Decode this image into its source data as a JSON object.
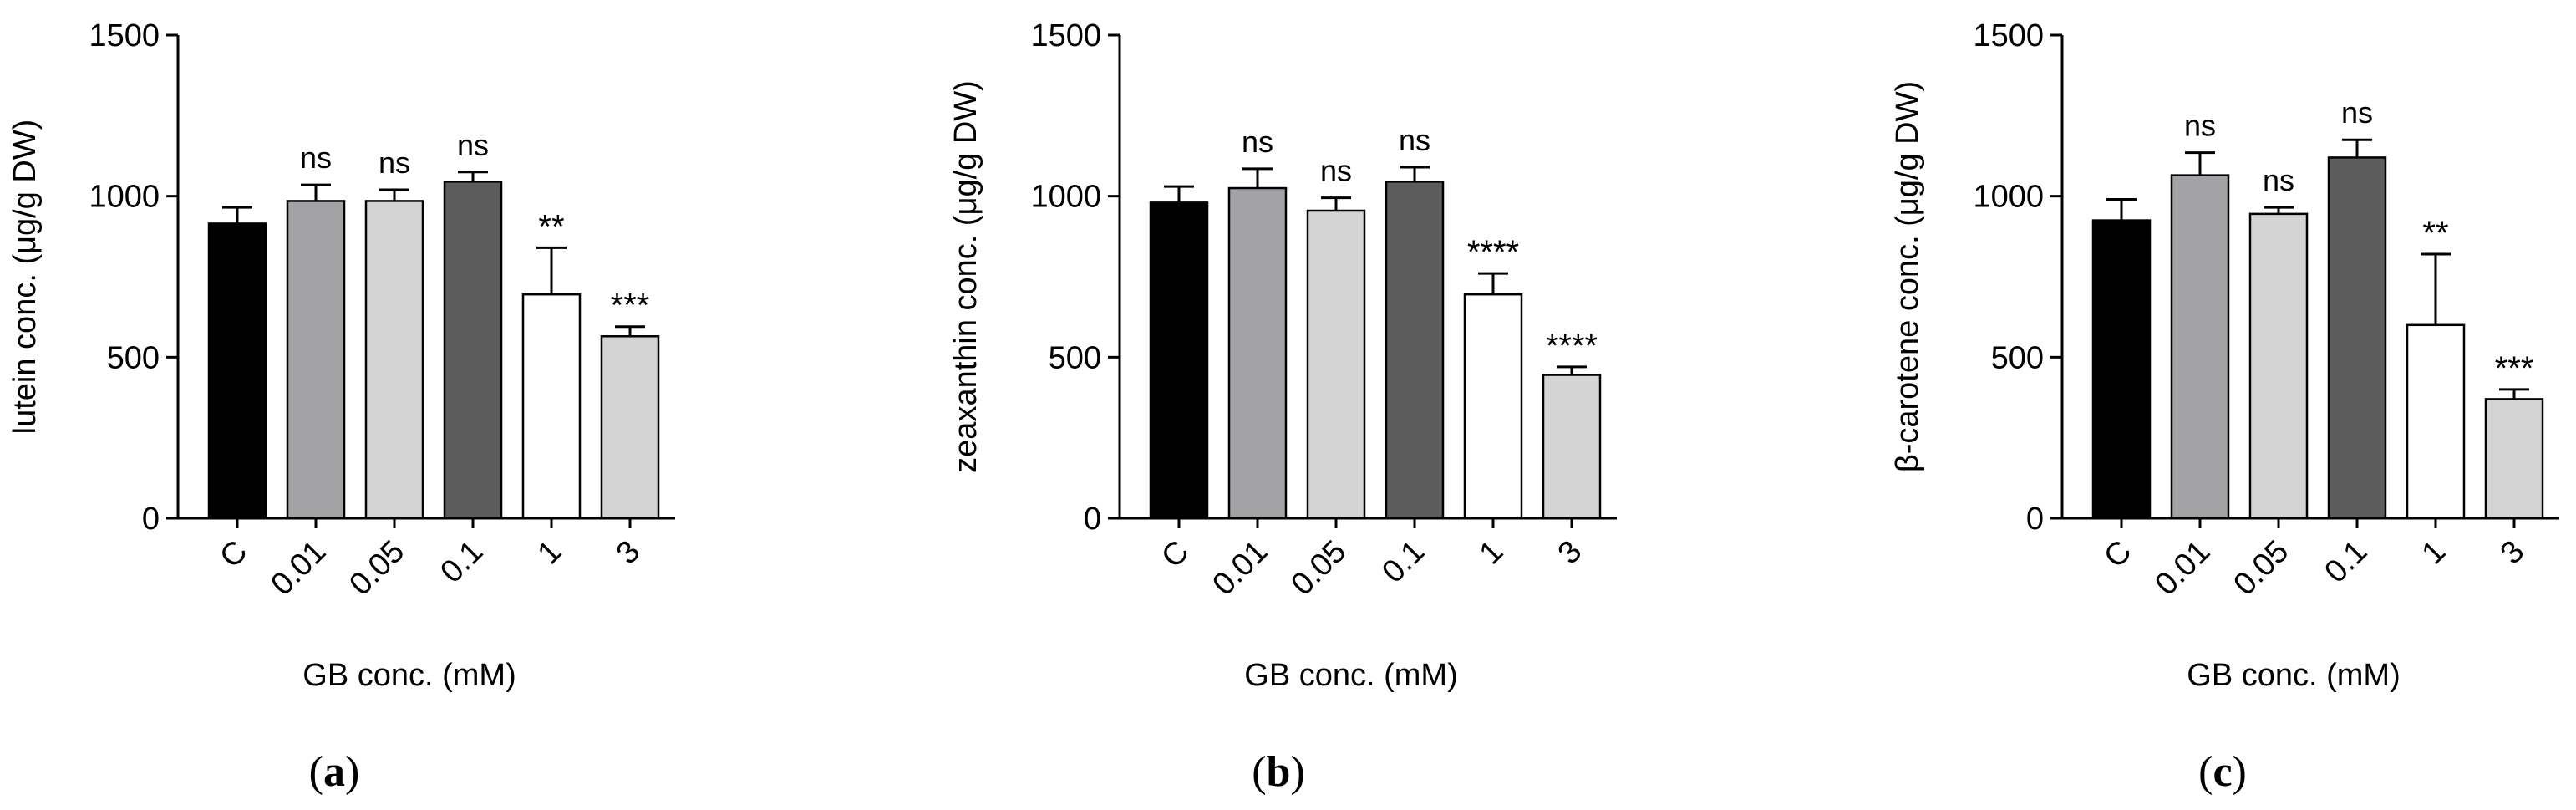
{
  "chart_data": [
    {
      "panel_label": "a",
      "type": "bar",
      "categories": [
        "C",
        "0.01",
        "0.05",
        "0.1",
        "1",
        "3"
      ],
      "values": [
        915,
        985,
        985,
        1045,
        695,
        565
      ],
      "errors": [
        50,
        50,
        35,
        30,
        145,
        30
      ],
      "significance": [
        "",
        "ns",
        "ns",
        "ns",
        "**",
        "***"
      ],
      "bar_colors": [
        "#000000",
        "#a3a3a6",
        "#d4d4d4",
        "#5c5c5c",
        "#ffffff",
        "#d4d4d4"
      ],
      "xlabel": "GB conc. (mM)",
      "ylabel": "lutein conc. (μg/g DW)",
      "yticks": [
        "0",
        "500",
        "1000",
        "1500"
      ],
      "ylim": [
        0,
        1500
      ]
    },
    {
      "panel_label": "b",
      "type": "bar",
      "categories": [
        "C",
        "0.01",
        "0.05",
        "0.1",
        "1",
        "3"
      ],
      "values": [
        980,
        1025,
        955,
        1045,
        695,
        445
      ],
      "errors": [
        50,
        60,
        40,
        45,
        65,
        25
      ],
      "significance": [
        "",
        "ns",
        "ns",
        "ns",
        "****",
        "****"
      ],
      "bar_colors": [
        "#000000",
        "#a3a3a6",
        "#d4d4d4",
        "#5c5c5c",
        "#ffffff",
        "#d4d4d4"
      ],
      "xlabel": "GB conc. (mM)",
      "ylabel": "zeaxanthin conc. (μg/g DW)",
      "yticks": [
        "0",
        "500",
        "1000",
        "1500"
      ],
      "ylim": [
        0,
        1500
      ]
    },
    {
      "panel_label": "c",
      "type": "bar",
      "categories": [
        "C",
        "0.01",
        "0.05",
        "0.1",
        "1",
        "3"
      ],
      "values": [
        925,
        1065,
        945,
        1120,
        600,
        370
      ],
      "errors": [
        65,
        70,
        20,
        55,
        220,
        30
      ],
      "significance": [
        "",
        "ns",
        "ns",
        "ns",
        "**",
        "***"
      ],
      "bar_colors": [
        "#000000",
        "#a3a3a6",
        "#d4d4d4",
        "#5c5c5c",
        "#ffffff",
        "#d4d4d4"
      ],
      "xlabel": "GB conc. (mM)",
      "ylabel": "β-carotene conc. (μg/g DW)",
      "yticks": [
        "0",
        "500",
        "1000",
        "1500"
      ],
      "ylim": [
        0,
        1500
      ]
    }
  ]
}
